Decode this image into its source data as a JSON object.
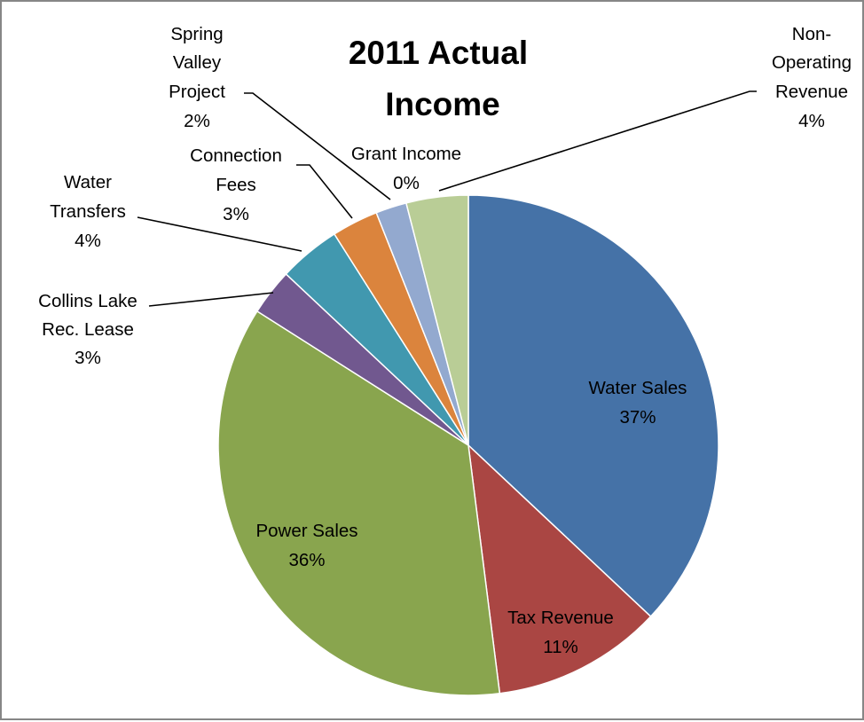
{
  "chart_data": {
    "type": "pie",
    "title_lines": [
      "2011 Actual",
      "Income"
    ],
    "slices": [
      {
        "name": "Water Sales",
        "percent_label": "37%",
        "value": 37,
        "color": "#4572A7"
      },
      {
        "name": "Tax Revenue",
        "percent_label": "11%",
        "value": 11,
        "color": "#AA4643"
      },
      {
        "name": "Power Sales",
        "percent_label": "36%",
        "value": 36,
        "color": "#89A54E"
      },
      {
        "name": "Collins Lake Rec. Lease",
        "percent_label": "3%",
        "value": 3,
        "color": "#71588F"
      },
      {
        "name": "Water Transfers",
        "percent_label": "4%",
        "value": 4,
        "color": "#4198AF"
      },
      {
        "name": "Connection Fees",
        "percent_label": "3%",
        "value": 3,
        "color": "#DB843D"
      },
      {
        "name": "Spring Valley Project",
        "percent_label": "2%",
        "value": 2,
        "color": "#93A9CF"
      },
      {
        "name": "Grant Income",
        "percent_label": "0%",
        "value": 0,
        "color": "#D19392"
      },
      {
        "name": "Non-Operating Revenue",
        "percent_label": "4%",
        "value": 4,
        "color": "#B9CD96"
      }
    ],
    "label_lines": {
      "water_sales": [
        "Water Sales"
      ],
      "tax_revenue": [
        "Tax Revenue"
      ],
      "power_sales": [
        "Power Sales"
      ],
      "collins_lake": [
        "Collins Lake",
        "Rec. Lease"
      ],
      "water_transfers": [
        "Water",
        "Transfers"
      ],
      "connection_fees": [
        "Connection",
        "Fees"
      ],
      "spring_valley": [
        "Spring",
        "Valley",
        "Project"
      ],
      "grant_income": [
        "Grant Income"
      ],
      "non_operating": [
        "Non-",
        "Operating",
        "Revenue"
      ]
    },
    "legend": "none"
  }
}
